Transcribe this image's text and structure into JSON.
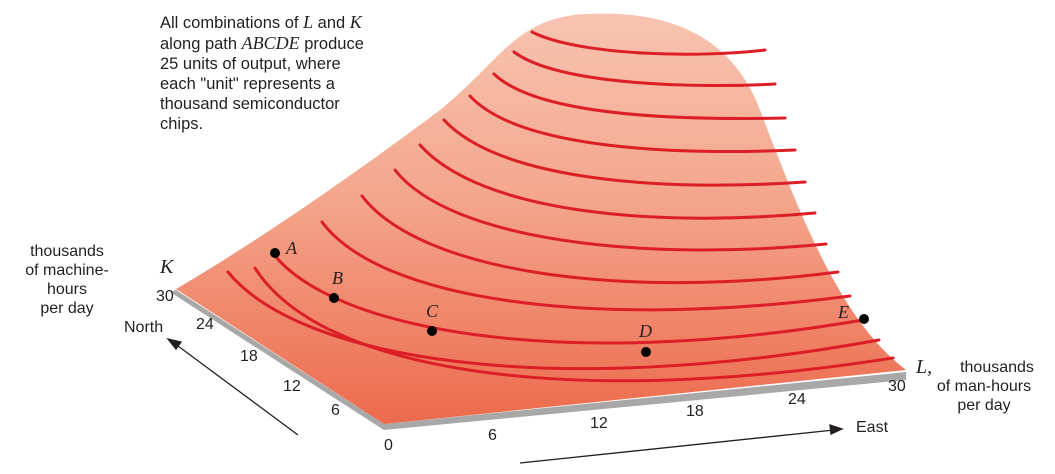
{
  "caption": {
    "line1_pre": "All combinations of ",
    "line1_var1": "L",
    "line1_mid": " and ",
    "line1_var2": "K",
    "line2_pre": "along path ",
    "line2_var": "ABCDE",
    "line2_post": " produce",
    "line3": "25 units of output, where",
    "line4": "each \"unit\" represents a",
    "line5": "thousand semiconductor",
    "line6": "chips."
  },
  "k_axis": {
    "symbol": "K",
    "desc_lines": [
      "thousands",
      "of machine-",
      "hours",
      "per day"
    ],
    "direction": "North",
    "ticks": [
      "30",
      "24",
      "18",
      "12",
      "6"
    ]
  },
  "l_axis": {
    "symbol": "L,",
    "desc_lines": [
      "thousands",
      "of man-hours",
      "per day"
    ],
    "direction": "East",
    "ticks": [
      "6",
      "12",
      "18",
      "24",
      "30"
    ]
  },
  "origin": "0",
  "points": [
    "A",
    "B",
    "C",
    "D",
    "E"
  ],
  "colors": {
    "surface_top": "#f7c2ae",
    "surface_bottom": "#ee6a4e",
    "contour": "#dc1f26",
    "base_edge": "#a8a7a7",
    "text": "#231f20"
  }
}
